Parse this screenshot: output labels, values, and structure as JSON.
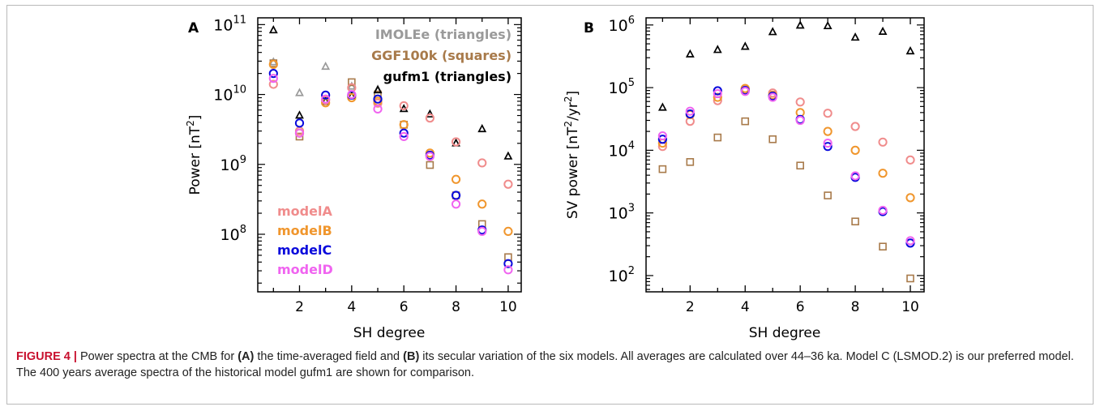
{
  "caption": {
    "figure_label": "FIGURE 4 |",
    "t1": " Power spectra at the CMB for ",
    "b1": "(A)",
    "t2": " the time-averaged field and ",
    "b2": "(B)",
    "t3": " its secular variation of the six models. All averages are calculated over 44–36 ka. Model C (LSMOD.2) is our preferred model. The 400 years average spectra of the historical model gufm1 are shown for comparison."
  },
  "colors": {
    "modelA": "#f08c8c",
    "modelB": "#f0962d",
    "modelC": "#0a0adc",
    "modelD": "#f064f0",
    "IMOLEe": "#9a9a9a",
    "GGF100k": "#a87a4a",
    "gufm1": "#000000"
  },
  "chart_data": [
    {
      "panel": "A",
      "type": "scatter",
      "xlabel": "SH degree",
      "ylabel_base": "Power  [nT",
      "ylabel_sup": "2",
      "ylabel_end": "]",
      "log_y": true,
      "xlim": [
        0.4,
        10.5
      ],
      "ylim": [
        15000000.0,
        125000000000.0
      ],
      "x_ticks": [
        2,
        4,
        6,
        8,
        10
      ],
      "y_ticks": [
        {
          "exp": 8,
          "base": "10",
          "sup": "8"
        },
        {
          "exp": 9,
          "base": "10",
          "sup": "9"
        },
        {
          "exp": 10,
          "base": "10",
          "sup": "10"
        },
        {
          "exp": 11,
          "base": "10",
          "sup": "11"
        }
      ],
      "legend_top_right": [
        {
          "label": "IMOLEe  (triangles)",
          "color_key": "IMOLEe"
        },
        {
          "label": "GGF100k  (squares)",
          "color_key": "GGF100k"
        },
        {
          "label": "gufm1  (triangles)",
          "color_key": "gufm1"
        }
      ],
      "legend_bottom_left": [
        {
          "label": "modelA",
          "color_key": "modelA"
        },
        {
          "label": "modelB",
          "color_key": "modelB"
        },
        {
          "label": "modelC",
          "color_key": "modelC"
        },
        {
          "label": "modelD",
          "color_key": "modelD"
        }
      ],
      "series": [
        {
          "name": "IMOLEe",
          "marker": "triangle",
          "color_key": "IMOLEe",
          "x": [
            1,
            2,
            3,
            4,
            5
          ],
          "y": [
            29000000000.0,
            10500000000.0,
            25000000000.0,
            13000000000.0,
            11800000000.0
          ]
        },
        {
          "name": "GGF100k",
          "marker": "square",
          "color_key": "GGF100k",
          "x": [
            1,
            2,
            3,
            4,
            5,
            6,
            7,
            8,
            9,
            10
          ],
          "y": [
            28000000000.0,
            2500000000.0,
            8000000000.0,
            15000000000.0,
            10000000000.0,
            3700000000.0,
            980000000.0,
            360000000.0,
            140000000.0,
            47000000.0
          ]
        },
        {
          "name": "gufm1",
          "marker": "triangle",
          "color_key": "gufm1",
          "x": [
            1,
            2,
            3,
            4,
            5,
            6,
            7,
            8,
            9,
            10
          ],
          "y": [
            83000000000.0,
            5000000000.0,
            8000000000.0,
            9500000000.0,
            11500000000.0,
            6200000000.0,
            5200000000.0,
            2000000000.0,
            3200000000.0,
            1300000000.0
          ]
        },
        {
          "name": "modelA",
          "marker": "circle",
          "color_key": "modelA",
          "x": [
            1,
            2,
            3,
            4,
            5,
            6,
            7,
            8,
            9,
            10
          ],
          "y": [
            14000000000.0,
            3000000000.0,
            8300000000.0,
            12500000000.0,
            7500000000.0,
            6900000000.0,
            4600000000.0,
            2100000000.0,
            1050000000.0,
            520000000.0
          ]
        },
        {
          "name": "modelB",
          "marker": "circle",
          "color_key": "modelB",
          "x": [
            1,
            2,
            3,
            4,
            5,
            6,
            7,
            8,
            9,
            10
          ],
          "y": [
            27000000000.0,
            2800000000.0,
            7600000000.0,
            9000000000.0,
            8000000000.0,
            3700000000.0,
            1450000000.0,
            610000000.0,
            270000000.0,
            110000000.0
          ]
        },
        {
          "name": "modelC",
          "marker": "circle",
          "color_key": "modelC",
          "x": [
            1,
            2,
            3,
            4,
            5,
            6,
            7,
            8,
            9,
            10
          ],
          "y": [
            20000000000.0,
            3900000000.0,
            9800000000.0,
            9800000000.0,
            8600000000.0,
            2800000000.0,
            1350000000.0,
            360000000.0,
            115000000.0,
            38000000.0
          ]
        },
        {
          "name": "modelD",
          "marker": "circle",
          "color_key": "modelD",
          "x": [
            1,
            2,
            3,
            4,
            5,
            6,
            7,
            8,
            9,
            10
          ],
          "y": [
            17000000000.0,
            2800000000.0,
            8600000000.0,
            10000000000.0,
            6200000000.0,
            2500000000.0,
            1300000000.0,
            270000000.0,
            110000000.0,
            31000000.0
          ]
        }
      ]
    },
    {
      "panel": "B",
      "type": "scatter",
      "xlabel": "SH degree",
      "ylabel_base": "SV power  [nT",
      "ylabel_sup": "2",
      "ylabel_mid": "/yr",
      "ylabel_sup2": "2",
      "ylabel_end": "]",
      "log_y": true,
      "xlim": [
        0.4,
        10.5
      ],
      "ylim": [
        55,
        1300000.0
      ],
      "x_ticks": [
        2,
        4,
        6,
        8,
        10
      ],
      "y_ticks": [
        {
          "exp": 2,
          "base": "10",
          "sup": "2"
        },
        {
          "exp": 3,
          "base": "10",
          "sup": "3"
        },
        {
          "exp": 4,
          "base": "10",
          "sup": "4"
        },
        {
          "exp": 5,
          "base": "10",
          "sup": "5"
        },
        {
          "exp": 6,
          "base": "10",
          "sup": "6"
        }
      ],
      "series": [
        {
          "name": "gufm1",
          "marker": "triangle",
          "color_key": "gufm1",
          "x": [
            1,
            2,
            3,
            4,
            5,
            6,
            7,
            8,
            9,
            10
          ],
          "y": [
            48000.0,
            340000.0,
            400000.0,
            450000.0,
            770000.0,
            980000.0,
            960000.0,
            630000.0,
            780000.0,
            380000.0
          ]
        },
        {
          "name": "GGF100k",
          "marker": "square",
          "color_key": "GGF100k",
          "x": [
            1,
            2,
            3,
            4,
            5,
            6,
            7,
            8,
            9,
            10
          ],
          "y": [
            5000.0,
            6500.0,
            16000.0,
            29000.0,
            15000.0,
            5700.0,
            1900.0,
            730.0,
            290.0,
            90
          ]
        },
        {
          "name": "modelA",
          "marker": "circle",
          "color_key": "modelA",
          "x": [
            1,
            2,
            3,
            4,
            5,
            6,
            7,
            8,
            9,
            10
          ],
          "y": [
            11500.0,
            29000.0,
            62000.0,
            95000.0,
            82000.0,
            59000.0,
            39000.0,
            24000.0,
            13500.0,
            7000.0
          ]
        },
        {
          "name": "modelB",
          "marker": "circle",
          "color_key": "modelB",
          "x": [
            1,
            2,
            3,
            4,
            5,
            6,
            7,
            8,
            9,
            10
          ],
          "y": [
            13000.0,
            37000.0,
            70000.0,
            97000.0,
            76000.0,
            40000.0,
            20000.0,
            10000.0,
            4300.0,
            1750.0
          ]
        },
        {
          "name": "modelC",
          "marker": "circle",
          "color_key": "modelC",
          "x": [
            1,
            2,
            3,
            4,
            5,
            6,
            7,
            8,
            9,
            10
          ],
          "y": [
            15000.0,
            38000.0,
            89000.0,
            90000.0,
            73000.0,
            31000.0,
            11500.0,
            3700.0,
            1050.0,
            330.0
          ]
        },
        {
          "name": "modelD",
          "marker": "circle",
          "color_key": "modelD",
          "x": [
            1,
            2,
            3,
            4,
            5,
            6,
            7,
            8,
            9,
            10
          ],
          "y": [
            17000.0,
            42000.0,
            80000.0,
            87000.0,
            70000.0,
            30000.0,
            13000.0,
            3900.0,
            1100.0,
            360.0
          ]
        }
      ]
    }
  ]
}
